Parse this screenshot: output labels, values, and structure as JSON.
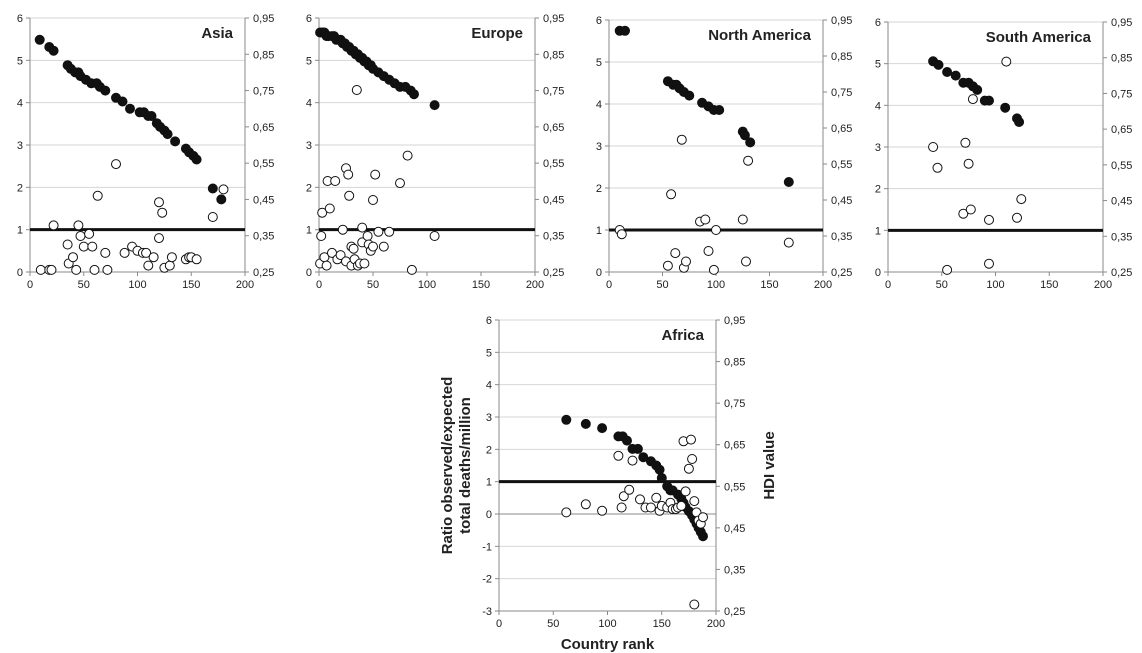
{
  "chart_data": [
    {
      "type": "scatter",
      "title": "Asia",
      "xlim": [
        0,
        200
      ],
      "ylim": [
        0,
        6
      ],
      "y2lim": [
        0.25,
        0.95
      ],
      "x_ticks": [
        "0",
        "50",
        "100",
        "150",
        "200"
      ],
      "y_ticks": [
        "0",
        "1",
        "2",
        "3",
        "4",
        "5",
        "6"
      ],
      "y2_ticks": [
        "0,25",
        "0,35",
        "0,45",
        "0,55",
        "0,65",
        "0,75",
        "0,85",
        "0,95"
      ],
      "reference_line": 1,
      "series": [
        {
          "marker": "filled",
          "axis": "right",
          "x": [
            9,
            18,
            22,
            35,
            38,
            42,
            45,
            47,
            52,
            57,
            62,
            65,
            70,
            80,
            86,
            93,
            102,
            106,
            110,
            113,
            118,
            121,
            125,
            128,
            135,
            145,
            148,
            152,
            155,
            170,
            178
          ],
          "y": [
            0.89,
            0.87,
            0.86,
            0.82,
            0.81,
            0.8,
            0.8,
            0.79,
            0.78,
            0.77,
            0.77,
            0.76,
            0.75,
            0.73,
            0.72,
            0.7,
            0.69,
            0.69,
            0.68,
            0.68,
            0.66,
            0.65,
            0.64,
            0.63,
            0.61,
            0.59,
            0.58,
            0.57,
            0.56,
            0.48,
            0.45
          ]
        },
        {
          "marker": "open",
          "axis": "left",
          "x": [
            10,
            18,
            20,
            22,
            35,
            36,
            40,
            43,
            45,
            47,
            50,
            55,
            58,
            60,
            63,
            70,
            72,
            80,
            88,
            95,
            100,
            105,
            108,
            110,
            115,
            120,
            120,
            123,
            125,
            130,
            132,
            145,
            148,
            150,
            155,
            170,
            180
          ],
          "y": [
            0.05,
            0.05,
            0.05,
            1.1,
            0.65,
            0.2,
            0.35,
            0.05,
            1.1,
            0.85,
            0.6,
            0.9,
            0.6,
            0.05,
            1.8,
            0.45,
            0.05,
            2.55,
            0.45,
            0.6,
            0.5,
            0.45,
            0.45,
            0.15,
            0.35,
            1.65,
            0.8,
            1.4,
            0.1,
            0.15,
            0.35,
            0.3,
            0.35,
            0.35,
            0.3,
            1.3,
            1.95
          ]
        }
      ]
    },
    {
      "type": "scatter",
      "title": "Europe",
      "xlim": [
        0,
        200
      ],
      "ylim": [
        0,
        6
      ],
      "y2lim": [
        0.25,
        0.95
      ],
      "x_ticks": [
        "0",
        "50",
        "100",
        "150",
        "200"
      ],
      "y_ticks": [
        "0",
        "1",
        "2",
        "3",
        "4",
        "5",
        "6"
      ],
      "y2_ticks": [
        "0,25",
        "0,35",
        "0,45",
        "0,55",
        "0,65",
        "0,75",
        "0,85",
        "0,95"
      ],
      "reference_line": 1,
      "series": [
        {
          "marker": "filled",
          "axis": "right",
          "x": [
            1,
            3,
            5,
            7,
            9,
            12,
            14,
            16,
            18,
            20,
            22,
            24,
            26,
            28,
            30,
            32,
            34,
            36,
            38,
            40,
            42,
            44,
            46,
            48,
            50,
            55,
            60,
            65,
            70,
            75,
            80,
            85,
            88,
            107
          ],
          "y": [
            0.91,
            0.91,
            0.91,
            0.9,
            0.9,
            0.9,
            0.9,
            0.89,
            0.89,
            0.89,
            0.88,
            0.88,
            0.87,
            0.87,
            0.86,
            0.86,
            0.85,
            0.85,
            0.84,
            0.84,
            0.83,
            0.83,
            0.82,
            0.82,
            0.81,
            0.8,
            0.79,
            0.78,
            0.77,
            0.76,
            0.76,
            0.75,
            0.74,
            0.71
          ]
        },
        {
          "marker": "open",
          "axis": "left",
          "x": [
            1,
            2,
            3,
            5,
            7,
            8,
            10,
            12,
            15,
            17,
            20,
            22,
            25,
            25,
            27,
            28,
            30,
            30,
            32,
            33,
            35,
            36,
            38,
            40,
            40,
            42,
            45,
            46,
            48,
            50,
            50,
            52,
            55,
            60,
            65,
            75,
            82,
            86,
            107
          ],
          "y": [
            0.2,
            0.85,
            1.4,
            0.35,
            0.15,
            2.15,
            1.5,
            0.45,
            2.15,
            0.3,
            0.4,
            1.0,
            2.45,
            0.25,
            2.3,
            1.8,
            0.15,
            0.6,
            0.55,
            0.3,
            4.3,
            0.15,
            0.2,
            1.05,
            0.7,
            0.2,
            0.85,
            0.65,
            0.5,
            1.7,
            0.6,
            2.3,
            0.95,
            0.6,
            0.95,
            2.1,
            2.75,
            0.05,
            0.85
          ]
        }
      ]
    },
    {
      "type": "scatter",
      "title": "North America",
      "xlim": [
        0,
        200
      ],
      "ylim": [
        0,
        6
      ],
      "y2lim": [
        0.25,
        0.95
      ],
      "x_ticks": [
        "0",
        "50",
        "100",
        "150",
        "200"
      ],
      "y_ticks": [
        "0",
        "1",
        "2",
        "3",
        "4",
        "5",
        "6"
      ],
      "y2_ticks": [
        "0,25",
        "0,35",
        "0,45",
        "0,55",
        "0,65",
        "0,75",
        "0,85",
        "0,95"
      ],
      "reference_line": 1,
      "series": [
        {
          "marker": "filled",
          "axis": "right",
          "x": [
            10,
            15,
            55,
            60,
            63,
            66,
            70,
            75,
            87,
            93,
            98,
            103,
            125,
            127,
            132,
            168
          ],
          "y": [
            0.92,
            0.92,
            0.78,
            0.77,
            0.77,
            0.76,
            0.75,
            0.74,
            0.72,
            0.71,
            0.7,
            0.7,
            0.64,
            0.63,
            0.61,
            0.5
          ]
        },
        {
          "marker": "open",
          "axis": "left",
          "x": [
            10,
            12,
            55,
            58,
            62,
            68,
            70,
            72,
            85,
            90,
            93,
            98,
            100,
            125,
            128,
            130,
            168
          ],
          "y": [
            1.0,
            0.9,
            0.15,
            1.85,
            0.45,
            3.15,
            0.1,
            0.25,
            1.2,
            1.25,
            0.5,
            0.05,
            1.0,
            1.25,
            0.25,
            2.65,
            0.7
          ]
        }
      ]
    },
    {
      "type": "scatter",
      "title": "South America",
      "xlim": [
        0,
        200
      ],
      "ylim": [
        0,
        6
      ],
      "y2lim": [
        0.25,
        0.95
      ],
      "x_ticks": [
        "0",
        "50",
        "100",
        "150",
        "200"
      ],
      "y_ticks": [
        "0",
        "1",
        "2",
        "3",
        "4",
        "5",
        "6"
      ],
      "y2_ticks": [
        "0,25",
        "0,35",
        "0,45",
        "0,55",
        "0,65",
        "0,75",
        "0,85",
        "0,95"
      ],
      "reference_line": 1,
      "series": [
        {
          "marker": "filled",
          "axis": "right",
          "x": [
            42,
            47,
            55,
            63,
            70,
            75,
            79,
            83,
            90,
            94,
            109,
            120,
            122
          ],
          "y": [
            0.84,
            0.83,
            0.81,
            0.8,
            0.78,
            0.78,
            0.77,
            0.76,
            0.73,
            0.73,
            0.71,
            0.68,
            0.67
          ]
        },
        {
          "marker": "open",
          "axis": "left",
          "x": [
            42,
            46,
            55,
            70,
            72,
            75,
            77,
            79,
            94,
            94,
            110,
            120,
            124
          ],
          "y": [
            3.0,
            2.5,
            0.05,
            1.4,
            3.1,
            2.6,
            1.5,
            4.15,
            0.2,
            1.25,
            5.05,
            1.3,
            1.75
          ]
        }
      ]
    },
    {
      "type": "scatter",
      "title": "Africa",
      "xlabel": "Country rank",
      "ylabel": "Ratio observed/expected total deaths/million",
      "y2label": "HDI value",
      "xlim": [
        0,
        200
      ],
      "ylim": [
        -3,
        6
      ],
      "y2lim": [
        0.25,
        0.95
      ],
      "x_ticks": [
        "0",
        "50",
        "100",
        "150",
        "200"
      ],
      "y_ticks": [
        "-3",
        "-2",
        "-1",
        "0",
        "1",
        "2",
        "3",
        "4",
        "5",
        "6"
      ],
      "y2_ticks": [
        "0,25",
        "0,35",
        "0,45",
        "0,55",
        "0,65",
        "0,75",
        "0,85",
        "0,95"
      ],
      "reference_line": 1,
      "series": [
        {
          "marker": "filled",
          "axis": "right",
          "x": [
            62,
            80,
            95,
            110,
            114,
            118,
            123,
            128,
            133,
            140,
            145,
            148,
            150,
            155,
            158,
            160,
            165,
            168,
            170,
            172,
            175,
            178,
            180,
            182,
            184,
            186,
            188
          ],
          "y": [
            0.71,
            0.7,
            0.69,
            0.67,
            0.67,
            0.66,
            0.64,
            0.64,
            0.62,
            0.61,
            0.6,
            0.59,
            0.57,
            0.55,
            0.54,
            0.54,
            0.53,
            0.52,
            0.51,
            0.5,
            0.49,
            0.48,
            0.47,
            0.46,
            0.45,
            0.44,
            0.43
          ]
        },
        {
          "marker": "open",
          "axis": "left",
          "x": [
            62,
            80,
            95,
            110,
            113,
            115,
            120,
            123,
            130,
            135,
            140,
            145,
            148,
            150,
            155,
            158,
            160,
            163,
            165,
            168,
            170,
            172,
            175,
            177,
            178,
            180,
            182,
            184,
            186,
            188,
            180
          ],
          "y": [
            0.05,
            0.3,
            0.1,
            1.8,
            0.2,
            0.55,
            0.75,
            1.65,
            0.45,
            0.2,
            0.2,
            0.5,
            0.1,
            0.25,
            0.2,
            0.35,
            0.15,
            0.15,
            0.2,
            0.25,
            2.25,
            0.7,
            1.4,
            2.3,
            1.7,
            0.4,
            0.05,
            -0.2,
            -0.3,
            -0.1,
            -2.8
          ]
        }
      ]
    }
  ]
}
